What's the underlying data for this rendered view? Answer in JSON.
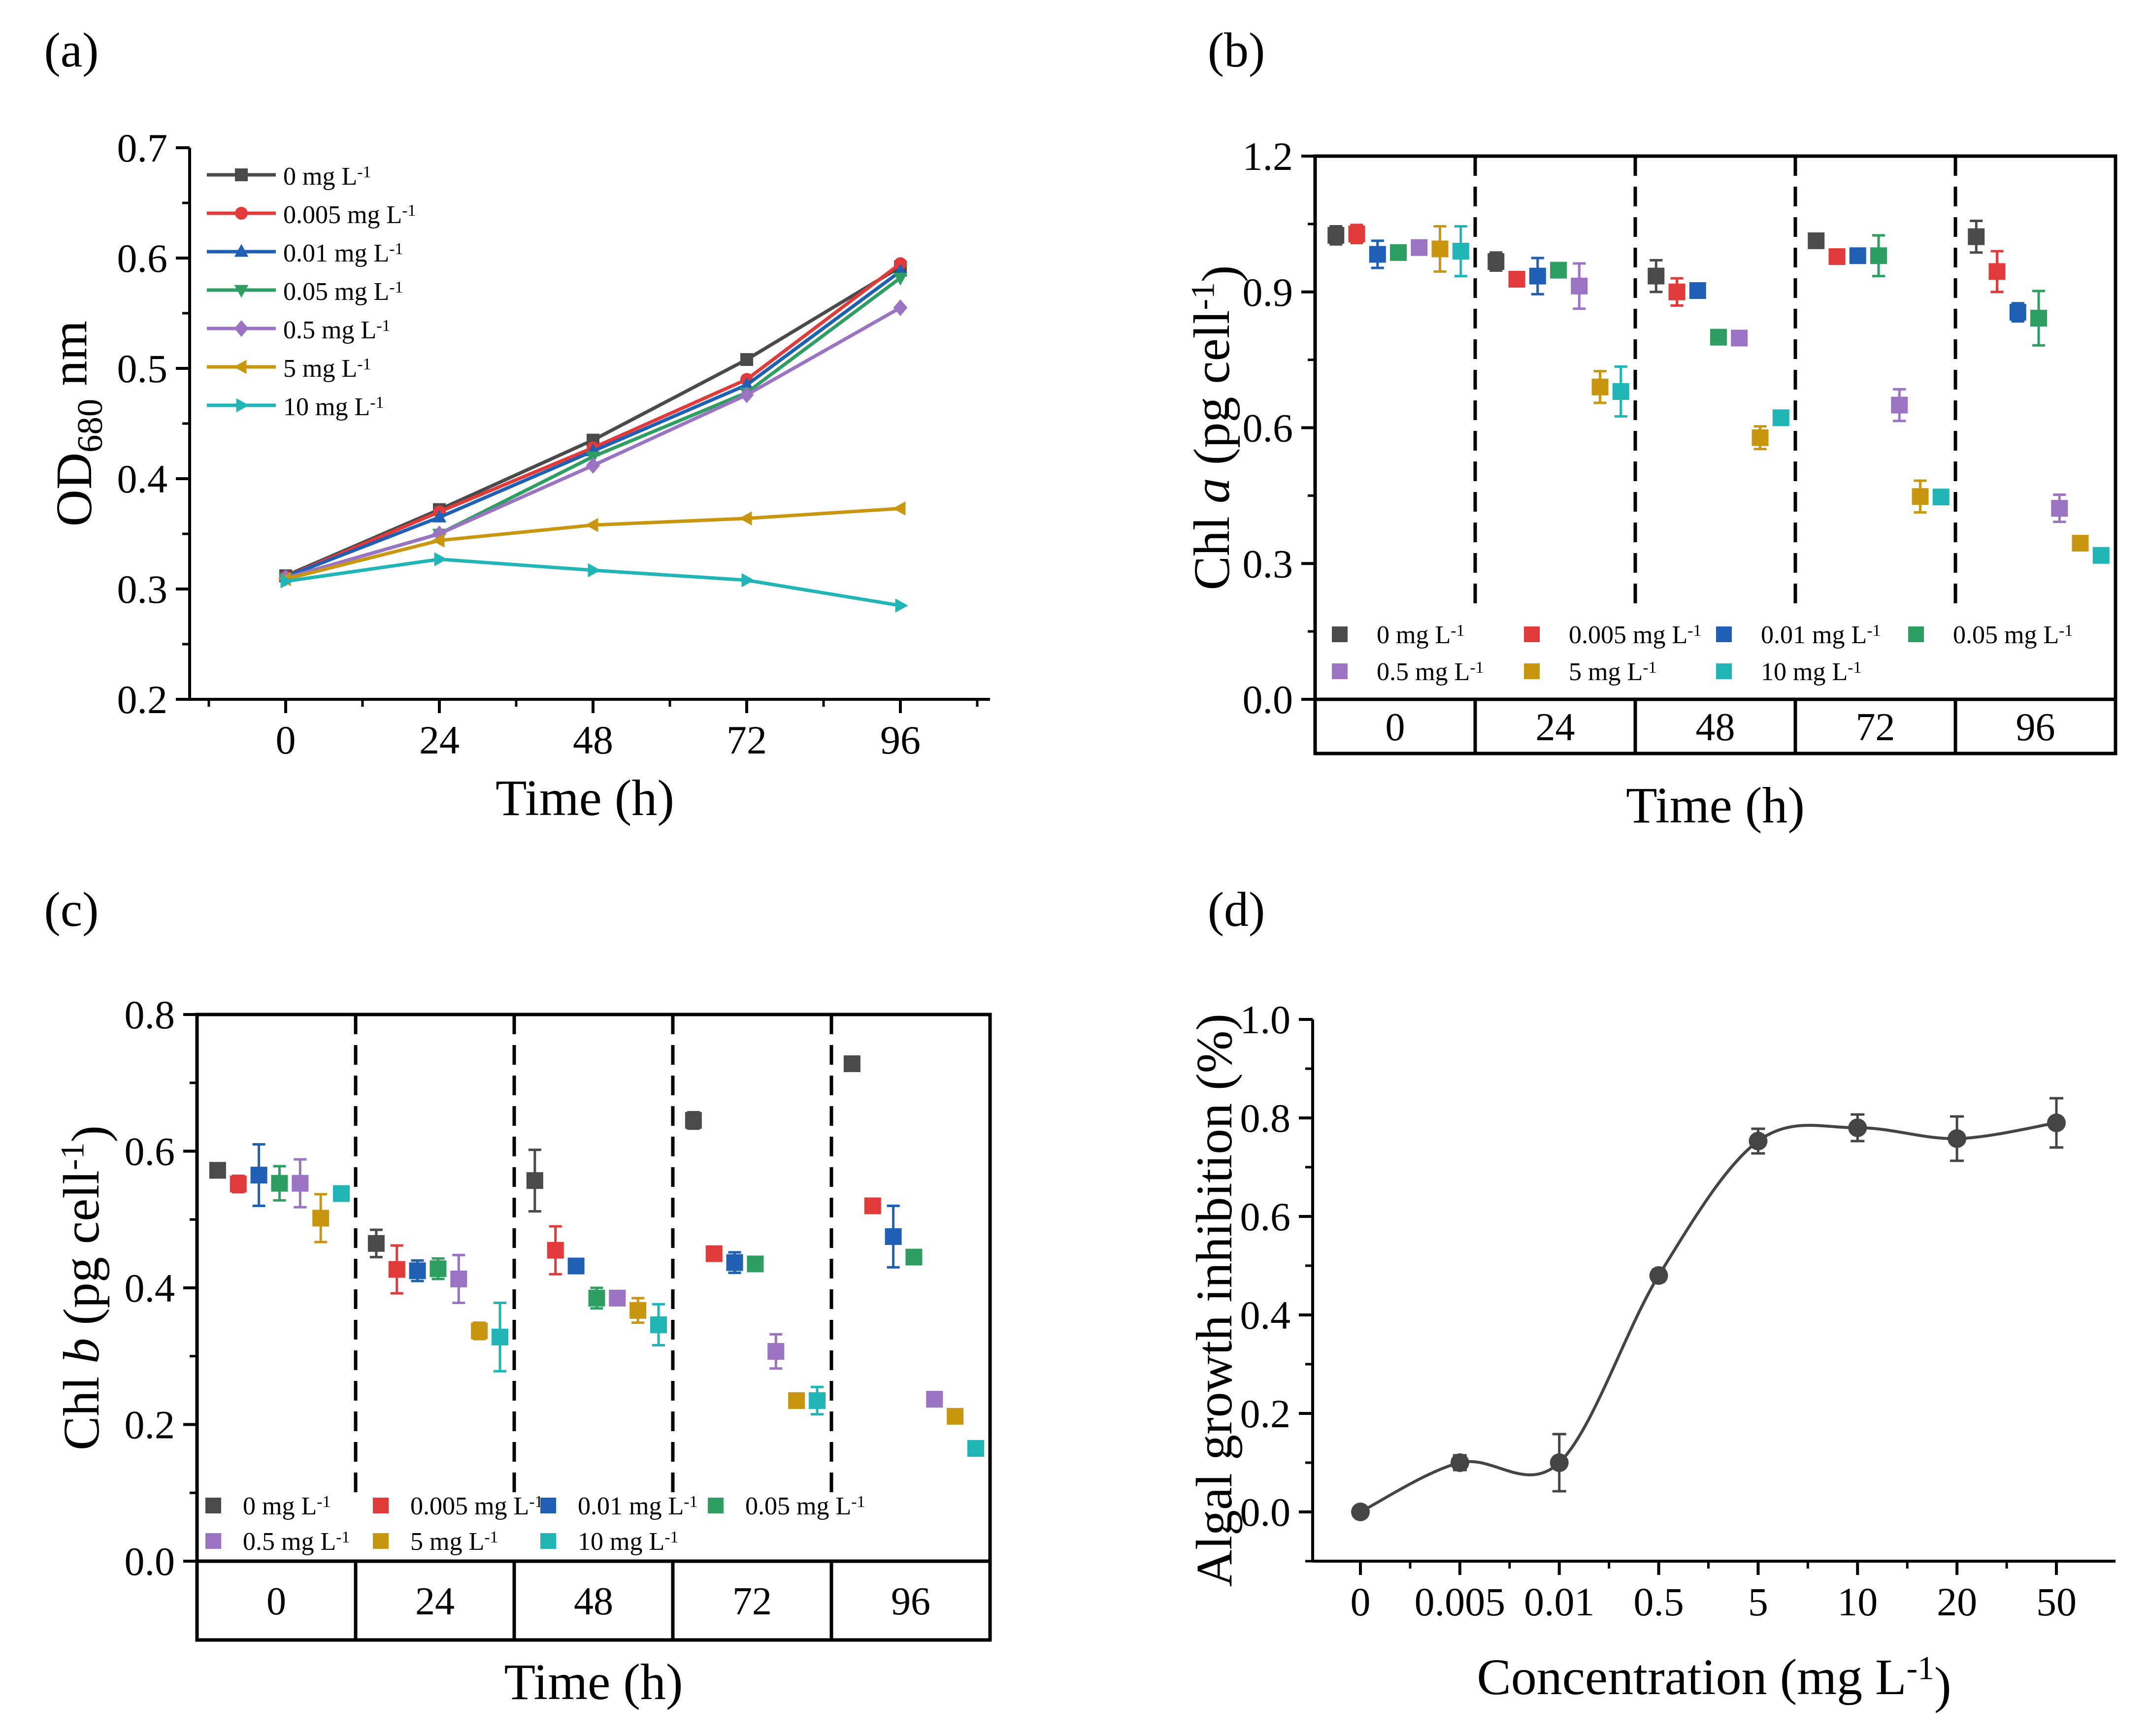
{
  "panels": [
    {
      "label": "(a)",
      "chart_data": {
        "type": "line",
        "title": "",
        "xlabel": "Time (h)",
        "ylabel": "OD680 nm",
        "ylabel_main": "OD",
        "ylabel_sub": "680",
        "ylabel_tail": " nm",
        "x": [
          0,
          24,
          48,
          72,
          96
        ],
        "x_tick_labels": [
          "0",
          "24",
          "48",
          "72",
          "96"
        ],
        "ylim": [
          0.2,
          0.7
        ],
        "y_ticks": [
          0.2,
          0.3,
          0.4,
          0.5,
          0.6,
          0.7
        ],
        "y_tick_labels": [
          "0.2",
          "0.3",
          "0.4",
          "0.5",
          "0.6",
          "0.7"
        ],
        "legend_position": "top-left",
        "series": [
          {
            "name": "0 mg L-1",
            "label": "0 mg L",
            "sup": "-1",
            "color": "#4a4a4a",
            "marker": "square",
            "values": [
              0.312,
              0.372,
              0.435,
              0.508,
              0.592
            ]
          },
          {
            "name": "0.005 mg L-1",
            "label": "0.005 mg L",
            "sup": "-1",
            "color": "#e03a3a",
            "marker": "circle",
            "values": [
              0.311,
              0.37,
              0.428,
              0.49,
              0.595
            ]
          },
          {
            "name": "0.01 mg L-1",
            "label": "0.01 mg L",
            "sup": "-1",
            "color": "#1f5fb4",
            "marker": "triangle-up",
            "values": [
              0.311,
              0.365,
              0.425,
              0.485,
              0.588
            ]
          },
          {
            "name": "0.05 mg L-1",
            "label": "0.05 mg L",
            "sup": "-1",
            "color": "#2e9e63",
            "marker": "triangle-down",
            "values": [
              0.31,
              0.35,
              0.42,
              0.478,
              0.582
            ]
          },
          {
            "name": "0.5 mg L-1",
            "label": "0.5 mg L",
            "sup": "-1",
            "color": "#9a73c2",
            "marker": "diamond",
            "values": [
              0.31,
              0.35,
              0.412,
              0.476,
              0.555
            ]
          },
          {
            "name": "5 mg L-1",
            "label": "5 mg L",
            "sup": "-1",
            "color": "#c9960f",
            "marker": "triangle-left",
            "values": [
              0.309,
              0.344,
              0.358,
              0.364,
              0.373
            ]
          },
          {
            "name": "10 mg L-1",
            "label": "10 mg L",
            "sup": "-1",
            "color": "#22b5b5",
            "marker": "triangle-right",
            "values": [
              0.307,
              0.327,
              0.317,
              0.308,
              0.285
            ]
          }
        ]
      }
    },
    {
      "label": "(b)",
      "chart_data": {
        "type": "scatter",
        "title": "",
        "xlabel": "Time (h)",
        "ylabel": "Chl a (pg cell-1)",
        "ylabel_pre": "Chl ",
        "ylabel_italic": "a",
        "ylabel_post": " (pg cell",
        "ylabel_sup": "-1",
        "ylabel_close": ")",
        "ylim": [
          0.0,
          1.2
        ],
        "y_ticks": [
          0.0,
          0.3,
          0.6,
          0.9,
          1.2
        ],
        "y_tick_labels": [
          "0.0",
          "0.3",
          "0.6",
          "0.9",
          "1.2"
        ],
        "categories": [
          "0",
          "24",
          "48",
          "72",
          "96"
        ],
        "legend_position": "bottom",
        "series": [
          {
            "name": "0 mg L-1",
            "label": "0 mg L",
            "sup": "-1",
            "color": "#4a4a4a",
            "values": [
              1.025,
              0.967,
              0.935,
              1.013,
              1.022
            ],
            "errors": [
              0.02,
              0.02,
              0.035,
              0.01,
              0.035
            ]
          },
          {
            "name": "0.005 mg L-1",
            "label": "0.005 mg L",
            "sup": "-1",
            "color": "#e03a3a",
            "values": [
              1.028,
              0.928,
              0.9,
              0.978,
              0.945
            ],
            "errors": [
              0.02,
              0.015,
              0.03,
              0.01,
              0.045
            ]
          },
          {
            "name": "0.01 mg L-1",
            "label": "0.01 mg L",
            "sup": "-1",
            "color": "#1f5fb4",
            "values": [
              0.983,
              0.935,
              0.903,
              0.98,
              0.855
            ],
            "errors": [
              0.03,
              0.04,
              0.01,
              0.015,
              0.02
            ]
          },
          {
            "name": "0.05 mg L-1",
            "label": "0.05 mg L",
            "sup": "-1",
            "color": "#2e9e63",
            "values": [
              0.987,
              0.948,
              0.8,
              0.98,
              0.842
            ],
            "errors": [
              0.01,
              0.01,
              0.01,
              0.045,
              0.06
            ]
          },
          {
            "name": "0.5 mg L-1",
            "label": "0.5 mg L",
            "sup": "-1",
            "color": "#9a73c2",
            "values": [
              0.998,
              0.913,
              0.798,
              0.65,
              0.422
            ],
            "errors": [
              0.01,
              0.05,
              0.01,
              0.035,
              0.03
            ]
          },
          {
            "name": "5 mg L-1",
            "label": "5 mg L",
            "sup": "-1",
            "color": "#c9960f",
            "values": [
              0.995,
              0.69,
              0.578,
              0.448,
              0.345
            ],
            "errors": [
              0.05,
              0.035,
              0.025,
              0.035,
              0.01
            ]
          },
          {
            "name": "10 mg L-1",
            "label": "10 mg L",
            "sup": "-1",
            "color": "#22b5b5",
            "values": [
              0.99,
              0.68,
              0.622,
              0.447,
              0.318
            ],
            "errors": [
              0.055,
              0.055,
              0.01,
              0.01,
              0.01
            ]
          }
        ]
      }
    },
    {
      "label": "(c)",
      "chart_data": {
        "type": "scatter",
        "title": "",
        "xlabel": "Time (h)",
        "ylabel": "Chl b (pg cell-1)",
        "ylabel_pre": "Chl ",
        "ylabel_italic": "b",
        "ylabel_post": " (pg cell",
        "ylabel_sup": "-1",
        "ylabel_close": ")",
        "ylim": [
          0.0,
          0.8
        ],
        "y_ticks": [
          0.0,
          0.2,
          0.4,
          0.6,
          0.8
        ],
        "y_tick_labels": [
          "0.0",
          "0.2",
          "0.4",
          "0.6",
          "0.8"
        ],
        "categories": [
          "0",
          "24",
          "48",
          "72",
          "96"
        ],
        "legend_position": "bottom",
        "series": [
          {
            "name": "0 mg L-1",
            "label": "0 mg L",
            "sup": "-1",
            "color": "#4a4a4a",
            "values": [
              0.572,
              0.465,
              0.557,
              0.645,
              0.728
            ],
            "errors": [
              0.01,
              0.02,
              0.045,
              0.012,
              0.005
            ]
          },
          {
            "name": "0.005 mg L-1",
            "label": "0.005 mg L",
            "sup": "-1",
            "color": "#e03a3a",
            "values": [
              0.552,
              0.427,
              0.455,
              0.45,
              0.52
            ],
            "errors": [
              0.012,
              0.035,
              0.035,
              0.005,
              0.005
            ]
          },
          {
            "name": "0.01 mg L-1",
            "label": "0.01 mg L",
            "sup": "-1",
            "color": "#1f5fb4",
            "values": [
              0.565,
              0.425,
              0.432,
              0.437,
              0.475
            ],
            "errors": [
              0.045,
              0.015,
              0.005,
              0.015,
              0.045
            ]
          },
          {
            "name": "0.05 mg L-1",
            "label": "0.05 mg L",
            "sup": "-1",
            "color": "#2e9e63",
            "values": [
              0.553,
              0.428,
              0.385,
              0.435,
              0.445
            ],
            "errors": [
              0.025,
              0.015,
              0.015,
              0.005,
              0.005
            ]
          },
          {
            "name": "0.5 mg L-1",
            "label": "0.5 mg L",
            "sup": "-1",
            "color": "#9a73c2",
            "values": [
              0.553,
              0.413,
              0.385,
              0.307,
              0.237
            ],
            "errors": [
              0.035,
              0.035,
              0.005,
              0.025,
              0.005
            ]
          },
          {
            "name": "5 mg L-1",
            "label": "5 mg L",
            "sup": "-1",
            "color": "#c9960f",
            "values": [
              0.502,
              0.337,
              0.367,
              0.235,
              0.212
            ],
            "errors": [
              0.035,
              0.012,
              0.018,
              0.005,
              0.005
            ]
          },
          {
            "name": "10 mg L-1",
            "label": "10 mg L",
            "sup": "-1",
            "color": "#22b5b5",
            "values": [
              0.538,
              0.328,
              0.346,
              0.235,
              0.165
            ],
            "errors": [
              0.005,
              0.05,
              0.03,
              0.02,
              0.005
            ]
          }
        ]
      }
    },
    {
      "label": "(d)",
      "chart_data": {
        "type": "scatter",
        "title": "",
        "xlabel": "Concentration (mg L-1)",
        "xlabel_main": "Concentration (mg L",
        "xlabel_sup": "-1",
        "xlabel_close": ")",
        "ylabel": "Algal growth inhibition (%)",
        "ylim": [
          -0.1,
          1.0
        ],
        "y_ticks": [
          0.0,
          0.2,
          0.4,
          0.6,
          0.8,
          1.0
        ],
        "y_tick_labels": [
          "0.0",
          "0.2",
          "0.4",
          "0.6",
          "0.8",
          "1.0"
        ],
        "categories": [
          "0",
          "0.005",
          "0.01",
          "0.5",
          "5",
          "10",
          "20",
          "50"
        ],
        "color": "#444444",
        "values": [
          0.0,
          0.1,
          0.1,
          0.48,
          0.753,
          0.78,
          0.758,
          0.79
        ],
        "errors": [
          0.005,
          0.015,
          0.058,
          0.012,
          0.025,
          0.027,
          0.045,
          0.05
        ],
        "fit": "sigmoidal curve through means"
      }
    }
  ]
}
